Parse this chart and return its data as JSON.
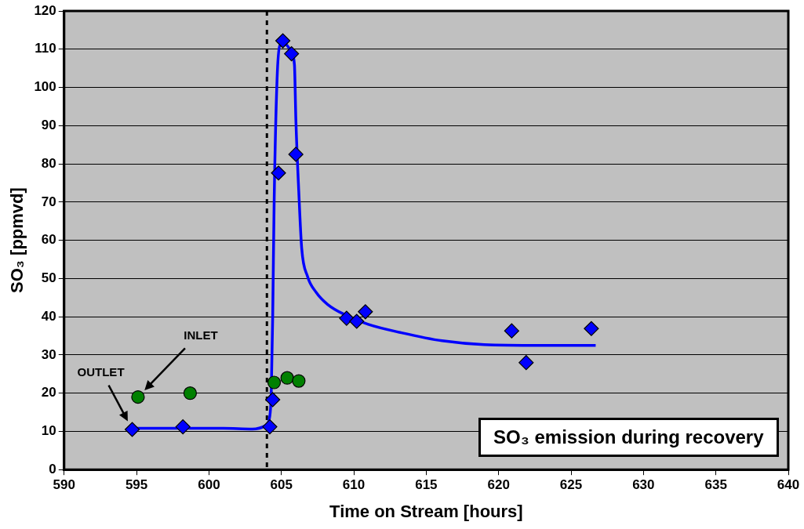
{
  "chart_data": {
    "type": "scatter",
    "xlabel": "Time on Stream [hours]",
    "ylabel": "SO₃ [ppmvd]",
    "xlim": [
      590,
      640
    ],
    "xticks": [
      590,
      595,
      600,
      605,
      610,
      615,
      620,
      625,
      630,
      635,
      640
    ],
    "ylim": [
      0,
      120
    ],
    "yticks": [
      0,
      10,
      20,
      30,
      40,
      50,
      60,
      70,
      80,
      90,
      100,
      110,
      120
    ],
    "grid": "y",
    "legend": false,
    "series": [
      {
        "name": "OUTLET",
        "type": "scatter",
        "marker": "diamond",
        "color": "#0000ff",
        "x": [
          594.7,
          598.2,
          604.2,
          604.4,
          604.8,
          605.1,
          605.7,
          606.0,
          609.5,
          610.2,
          610.8,
          620.9,
          621.9,
          626.4
        ],
        "values": [
          10.5,
          11.2,
          11.2,
          18.3,
          77.6,
          112.2,
          108.8,
          82.5,
          39.6,
          38.8,
          41.3,
          36.3,
          28.0,
          36.9
        ]
      },
      {
        "name": "INLET",
        "type": "scatter",
        "marker": "circle",
        "color": "#008000",
        "x": [
          595.1,
          598.7,
          604.5,
          605.4,
          606.2
        ],
        "values": [
          19.0,
          20.0,
          22.8,
          24.0,
          23.2
        ]
      },
      {
        "type": "line",
        "marker": "none",
        "line_style": "solid",
        "color": "#0000ff",
        "x": [
          594.7,
          598.0,
          601.0,
          603.0,
          603.9,
          604.2,
          604.3,
          604.4,
          604.5,
          604.7,
          604.9,
          605.2,
          605.6,
          605.9,
          606.0,
          606.2,
          606.4,
          606.8,
          607.4,
          608.2,
          609.4,
          611.0,
          613.3,
          616.1,
          619.0,
          622.9,
          626.7
        ],
        "values": [
          10.8,
          10.8,
          10.8,
          10.6,
          11.5,
          14,
          20,
          40,
          70,
          102,
          111,
          111.5,
          110,
          106,
          91.5,
          72.8,
          58,
          50.6,
          46.4,
          43.2,
          40.5,
          38,
          35.8,
          33.7,
          32.7,
          32.5,
          32.5
        ]
      }
    ],
    "ref_lines": [
      {
        "axis": "x",
        "value": 604,
        "line_style": "dashed",
        "color": "#000000"
      }
    ],
    "annotations": [
      "SO₃ emission during recovery"
    ]
  }
}
